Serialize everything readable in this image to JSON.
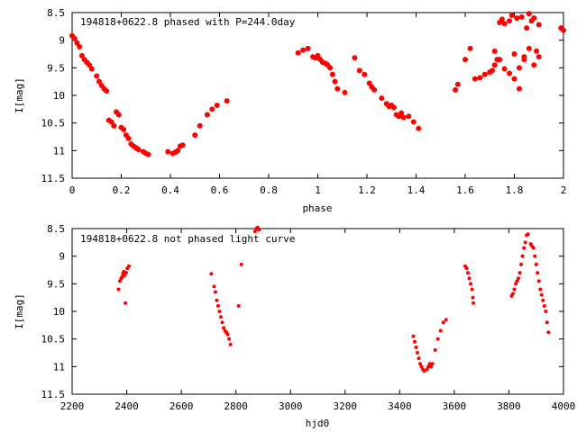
{
  "chart_data": [
    {
      "type": "scatter",
      "title": "194818+0622.8 phased with P=244.0day",
      "xlabel": "phase",
      "ylabel": "I[mag]",
      "xlim": [
        0,
        2
      ],
      "ylim": [
        8.5,
        11.5
      ],
      "y_inverted": true,
      "xticks": [
        0,
        0.2,
        0.4,
        0.6,
        0.8,
        1,
        1.2,
        1.4,
        1.6,
        1.8,
        2
      ],
      "xtick_labels": [
        "0",
        "0.2",
        "0.4",
        "0.6",
        "0.8",
        "1",
        "1.2",
        "1.4",
        "1.6",
        "1.8",
        "2"
      ],
      "yticks": [
        8.5,
        9,
        9.5,
        10,
        10.5,
        11,
        11.5
      ],
      "ytick_labels": [
        "8.5",
        "9",
        "9.5",
        "10",
        "10.5",
        "11",
        "11.5"
      ],
      "grid": false,
      "marker_color": "#ff0000",
      "series": [
        {
          "x": [
            0.0,
            0.01,
            0.02,
            0.03,
            0.04,
            0.05,
            0.06,
            0.07,
            0.08,
            0.1,
            0.11,
            0.12,
            0.13,
            0.14,
            0.15,
            0.16,
            0.17,
            0.18,
            0.19,
            0.2,
            0.21,
            0.22,
            0.23,
            0.24,
            0.25,
            0.26,
            0.27,
            0.29,
            0.3,
            0.31,
            0.39,
            0.41,
            0.42,
            0.43,
            0.44,
            0.45,
            0.5,
            0.52,
            0.55,
            0.57,
            0.59,
            0.63,
            0.92,
            0.94,
            0.96,
            0.98,
            0.99,
            1.0,
            1.01,
            1.02,
            1.03,
            1.04,
            1.05,
            1.06,
            1.07,
            1.08,
            1.11,
            1.15,
            1.17,
            1.19,
            1.21,
            1.22,
            1.23,
            1.26,
            1.28,
            1.29,
            1.3,
            1.31,
            1.32,
            1.33,
            1.34,
            1.35,
            1.37,
            1.39,
            1.41,
            1.56,
            1.57,
            1.6,
            1.62,
            1.64,
            1.66,
            1.68,
            1.7,
            1.71,
            1.72,
            1.73,
            1.74,
            1.75,
            1.76,
            1.78,
            1.79,
            1.8,
            1.81,
            1.82,
            1.83,
            1.84,
            1.85,
            1.86,
            1.87,
            1.88,
            1.89,
            1.9
          ],
          "y": [
            8.92,
            8.97,
            9.05,
            9.12,
            9.28,
            9.35,
            9.4,
            9.45,
            9.52,
            9.65,
            9.75,
            9.82,
            9.88,
            9.92,
            10.45,
            10.48,
            10.55,
            10.3,
            10.35,
            10.58,
            10.62,
            10.72,
            10.78,
            10.88,
            10.92,
            10.95,
            10.98,
            11.02,
            11.05,
            11.07,
            11.02,
            11.05,
            11.03,
            11.0,
            10.92,
            10.9,
            10.72,
            10.55,
            10.35,
            10.25,
            10.18,
            10.1,
            9.23,
            9.18,
            9.15,
            9.3,
            9.32,
            9.28,
            9.35,
            9.4,
            9.42,
            9.45,
            9.5,
            9.62,
            9.75,
            9.88,
            9.95,
            9.32,
            9.55,
            9.62,
            9.78,
            9.85,
            9.9,
            10.05,
            10.15,
            10.2,
            10.18,
            10.22,
            10.35,
            10.38,
            10.32,
            10.4,
            10.38,
            10.48,
            10.6,
            9.9,
            9.8,
            9.35,
            9.15,
            9.7,
            9.68,
            9.62,
            9.58,
            9.55,
            9.45,
            9.35,
            8.68,
            8.62,
            8.7,
            8.65,
            8.55,
            9.25,
            8.6,
            9.88,
            8.58,
            9.35,
            8.78,
            8.52,
            8.65,
            8.6,
            9.2,
            8.72
          ],
          "secondary_x": [
            1.72,
            1.74,
            1.76,
            1.78,
            1.8,
            1.82,
            1.84,
            1.86,
            1.88,
            1.9,
            1.99,
            2.0
          ],
          "secondary_y": [
            9.2,
            9.35,
            9.52,
            9.6,
            9.7,
            9.5,
            9.3,
            9.15,
            9.45,
            9.3,
            8.78,
            8.82
          ]
        }
      ]
    },
    {
      "type": "scatter",
      "title": "194818+0622.8 not phased light curve",
      "xlabel": "hjd0",
      "ylabel": "I[mag]",
      "xlim": [
        2200,
        4000
      ],
      "ylim": [
        8.5,
        11.5
      ],
      "y_inverted": true,
      "xticks": [
        2200,
        2400,
        2600,
        2800,
        3000,
        3200,
        3400,
        3600,
        3800,
        4000
      ],
      "xtick_labels": [
        "2200",
        "2400",
        "2600",
        "2800",
        "3000",
        "3200",
        "3400",
        "3600",
        "3800",
        "4000"
      ],
      "yticks": [
        8.5,
        9,
        9.5,
        10,
        10.5,
        11,
        11.5
      ],
      "ytick_labels": [
        "8.5",
        "9",
        "9.5",
        "10",
        "10.5",
        "11",
        "11.5"
      ],
      "grid": false,
      "marker_color": "#ff0000",
      "series": [
        {
          "x": [
            2370,
            2375,
            2380,
            2383,
            2386,
            2389,
            2392,
            2395,
            2398,
            2402,
            2408,
            2710,
            2720,
            2725,
            2730,
            2735,
            2740,
            2745,
            2750,
            2755,
            2760,
            2765,
            2770,
            2775,
            2780,
            2810,
            2820,
            2870,
            2875,
            2880,
            2885,
            3450,
            3455,
            3460,
            3465,
            3470,
            3475,
            3480,
            3485,
            3490,
            3500,
            3505,
            3510,
            3515,
            3520,
            3530,
            3540,
            3550,
            3560,
            3570,
            3640,
            3645,
            3650,
            3655,
            3660,
            3665,
            3668,
            3670,
            3810,
            3815,
            3820,
            3825,
            3830,
            3835,
            3840,
            3845,
            3850,
            3855,
            3860,
            3865,
            3870,
            3880,
            3885,
            3890,
            3895,
            3900,
            3905,
            3910,
            3915,
            3920,
            3925,
            3930,
            3935,
            3940,
            3945
          ],
          "y": [
            9.6,
            9.45,
            9.4,
            9.38,
            9.32,
            9.28,
            9.35,
            9.85,
            9.3,
            9.22,
            9.18,
            9.32,
            9.55,
            9.65,
            9.8,
            9.9,
            10.0,
            10.1,
            10.2,
            10.3,
            10.35,
            10.38,
            10.42,
            10.5,
            10.6,
            9.9,
            9.15,
            8.55,
            8.5,
            8.48,
            8.52,
            10.45,
            10.55,
            10.65,
            10.75,
            10.85,
            10.95,
            11.0,
            11.05,
            11.08,
            11.05,
            11.0,
            10.95,
            11.0,
            10.95,
            10.7,
            10.5,
            10.35,
            10.2,
            10.15,
            9.18,
            9.22,
            9.3,
            9.4,
            9.5,
            9.6,
            9.75,
            9.85,
            9.72,
            9.68,
            9.6,
            9.5,
            9.45,
            9.4,
            9.3,
            9.15,
            9.0,
            8.85,
            8.75,
            8.62,
            8.6,
            8.78,
            8.82,
            8.85,
            9.0,
            9.15,
            9.3,
            9.45,
            9.6,
            9.7,
            9.8,
            9.9,
            10.0,
            10.2,
            10.38
          ]
        }
      ]
    }
  ]
}
